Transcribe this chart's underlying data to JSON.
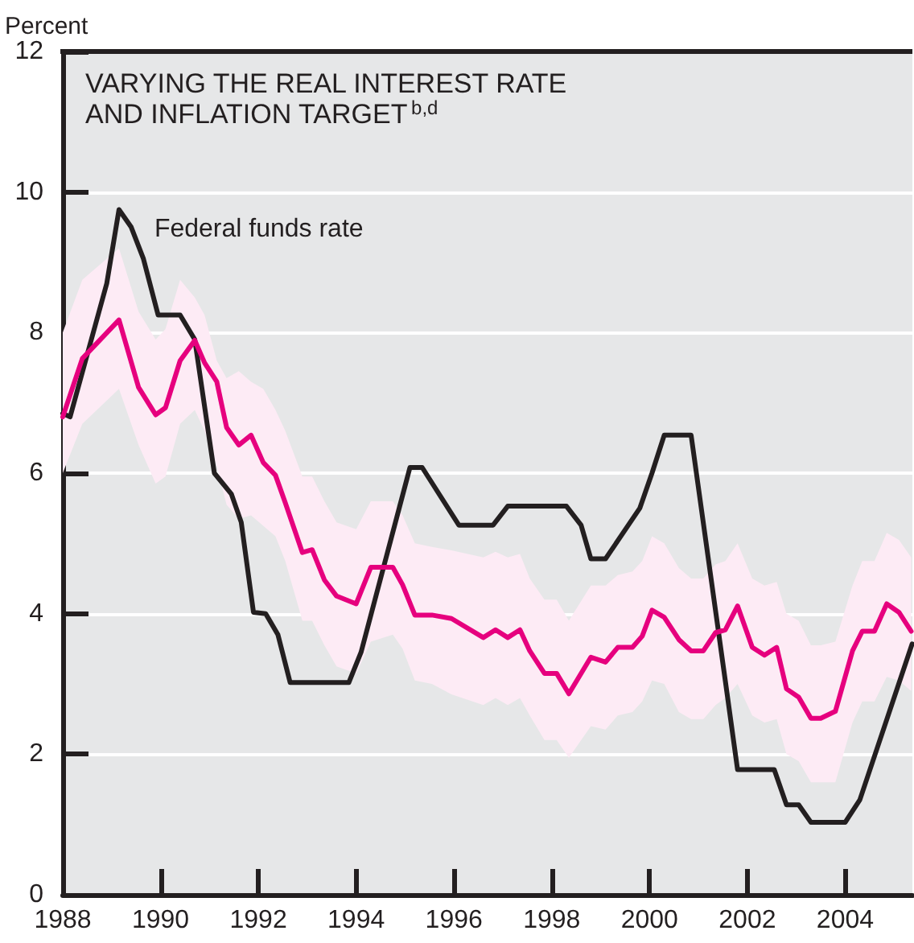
{
  "chart_data": {
    "type": "line",
    "title": "VARYING THE REAL INTEREST RATE\nAND INFLATION TARGET$^{b,d}$",
    "ylabel": "Percent",
    "xlim": [
      1988,
      2005.375
    ],
    "xticks": [
      1988,
      1990,
      1992,
      1994,
      1996,
      1998,
      2000,
      2002,
      2004
    ],
    "ylim": [
      0,
      12
    ],
    "yticks": [
      0,
      2,
      4,
      6,
      8,
      10,
      12
    ],
    "grid": "y",
    "marker": "none",
    "line_style": "solid",
    "series": [
      {
        "name": "Federal funds rate",
        "color": "#231f20",
        "x": [
          1988,
          1988.15,
          1988.9,
          1989.15,
          1989.4,
          1989.65,
          1989.95,
          1990.4,
          1990.7,
          1991.1,
          1991.45,
          1991.65,
          1991.9,
          1992.15,
          1992.4,
          1992.65,
          1993.85,
          1994.1,
          1995.1,
          1995.35,
          1996.1,
          1996.8,
          1997.1,
          1998.3,
          1998.6,
          1998.8,
          1999.1,
          1999.8,
          2000.05,
          2000.3,
          2000.85,
          2001.55,
          2001.8,
          2002.55,
          2002.8,
          2003.05,
          2003.3,
          2004,
          2004.3,
          2005.37
        ],
        "values": [
          6.85,
          6.8,
          8.7,
          9.75,
          9.5,
          9.05,
          8.25,
          8.25,
          7.9,
          6.0,
          5.7,
          5.3,
          4.02,
          4.0,
          3.7,
          3.02,
          3.02,
          3.45,
          6.08,
          6.08,
          5.26,
          5.26,
          5.53,
          5.53,
          5.26,
          4.78,
          4.78,
          5.5,
          6.0,
          6.54,
          6.54,
          3.04,
          1.78,
          1.78,
          1.28,
          1.28,
          1.03,
          1.03,
          1.35,
          3.57
        ]
      },
      {
        "color": "#e6007e",
        "x": [
          1988,
          1988.4,
          1989.15,
          1989.55,
          1989.9,
          1990.1,
          1990.4,
          1990.7,
          1990.9,
          1991.15,
          1991.35,
          1991.6,
          1991.85,
          1992.1,
          1992.35,
          1992.55,
          1992.9,
          1993.1,
          1993.35,
          1993.6,
          1994,
          1994.3,
          1994.75,
          1994.95,
          1995.2,
          1995.55,
          1995.95,
          1996.6,
          1996.85,
          1997.1,
          1997.35,
          1997.55,
          1997.85,
          1998.1,
          1998.35,
          1998.8,
          1999.1,
          1999.35,
          1999.65,
          1999.85,
          2000.05,
          2000.3,
          2000.6,
          2000.85,
          2001.1,
          2001.35,
          2001.55,
          2001.8,
          2002.1,
          2002.35,
          2002.6,
          2002.8,
          2003.05,
          2003.3,
          2003.5,
          2003.8,
          2004.15,
          2004.35,
          2004.6,
          2004.85,
          2005.1,
          2005.35
        ],
        "values": [
          6.8,
          7.63,
          8.18,
          7.22,
          6.83,
          6.93,
          7.6,
          7.89,
          7.57,
          7.3,
          6.65,
          6.4,
          6.54,
          6.15,
          5.97,
          5.58,
          4.87,
          4.91,
          4.48,
          4.25,
          4.14,
          4.66,
          4.66,
          4.41,
          3.98,
          3.98,
          3.93,
          3.66,
          3.77,
          3.66,
          3.77,
          3.47,
          3.15,
          3.15,
          2.86,
          3.38,
          3.31,
          3.52,
          3.52,
          3.68,
          4.05,
          3.95,
          3.63,
          3.47,
          3.47,
          3.73,
          3.77,
          4.11,
          3.52,
          3.41,
          3.52,
          2.93,
          2.81,
          2.51,
          2.51,
          2.61,
          3.47,
          3.75,
          3.75,
          4.14,
          4.02,
          3.75
        ],
        "upper": [
          8.0,
          8.75,
          9.2,
          8.3,
          7.9,
          8.05,
          8.75,
          8.5,
          8.25,
          7.6,
          7.35,
          7.45,
          7.3,
          7.2,
          6.9,
          6.6,
          5.95,
          5.95,
          5.6,
          5.3,
          5.2,
          5.6,
          5.6,
          5.4,
          5.0,
          4.95,
          4.9,
          4.8,
          4.88,
          4.8,
          4.85,
          4.5,
          4.2,
          4.2,
          3.9,
          4.4,
          4.4,
          4.55,
          4.6,
          4.75,
          5.1,
          5.0,
          4.65,
          4.5,
          4.5,
          4.7,
          4.75,
          5.0,
          4.5,
          4.4,
          4.45,
          4.0,
          3.9,
          3.55,
          3.55,
          3.6,
          4.4,
          4.75,
          4.75,
          5.15,
          5.05,
          4.8
        ],
        "lower": [
          6.0,
          6.7,
          7.2,
          6.4,
          5.85,
          5.95,
          6.7,
          6.9,
          6.6,
          6.1,
          5.55,
          5.35,
          5.4,
          5.25,
          5.1,
          4.75,
          3.9,
          3.9,
          3.55,
          3.25,
          3.15,
          3.6,
          3.7,
          3.5,
          3.05,
          3.0,
          2.85,
          2.7,
          2.8,
          2.7,
          2.8,
          2.55,
          2.2,
          2.2,
          1.95,
          2.4,
          2.35,
          2.55,
          2.6,
          2.75,
          3.05,
          3.0,
          2.6,
          2.5,
          2.5,
          2.7,
          2.8,
          3.0,
          2.55,
          2.45,
          2.5,
          2.0,
          1.9,
          1.6,
          1.6,
          1.6,
          2.45,
          2.75,
          2.75,
          3.1,
          3.05,
          2.9
        ]
      }
    ]
  }
}
